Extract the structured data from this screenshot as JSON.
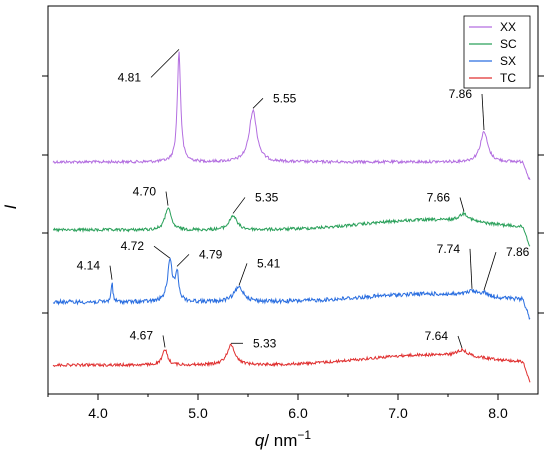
{
  "chart_data": {
    "type": "line",
    "title": "",
    "xlabel_var": "q",
    "xlabel_unit": "/ nm",
    "xlabel_exp": "−1",
    "ylabel": "I",
    "xlim": [
      3.5,
      8.4
    ],
    "x_ticks": [
      4.0,
      5.0,
      6.0,
      7.0,
      8.0
    ],
    "x_tick_labels": [
      "4.0",
      "5.0",
      "6.0",
      "7.0",
      "8.0"
    ],
    "y_ticks_labeled": false,
    "grid": false,
    "stacked_offset": true,
    "legend_position": "top-right",
    "series": [
      {
        "name": "XX",
        "color": "#b36ee0",
        "baseline": 0.0,
        "peaks": [
          {
            "x": 4.81,
            "height": 0.92,
            "width": 0.02
          },
          {
            "x": 5.55,
            "height": 0.43,
            "width": 0.045
          },
          {
            "x": 7.86,
            "height": 0.25,
            "width": 0.045
          }
        ],
        "labels": [
          "4.81",
          "5.55",
          "7.86"
        ]
      },
      {
        "name": "SC",
        "color": "#2aa05a",
        "baseline": 0.0,
        "peaks": [
          {
            "x": 4.7,
            "height": 0.28,
            "width": 0.035
          },
          {
            "x": 5.35,
            "height": 0.18,
            "width": 0.045
          },
          {
            "x": 7.66,
            "height": 0.1,
            "width": 0.06
          }
        ],
        "labels": [
          "4.70",
          "5.35",
          "7.66"
        ]
      },
      {
        "name": "SX",
        "color": "#2a6ee0",
        "baseline": 0.0,
        "peaks": [
          {
            "x": 4.14,
            "height": 0.28,
            "width": 0.01
          },
          {
            "x": 4.72,
            "height": 0.55,
            "width": 0.03
          },
          {
            "x": 4.79,
            "height": 0.38,
            "width": 0.02
          },
          {
            "x": 5.41,
            "height": 0.2,
            "width": 0.06
          },
          {
            "x": 7.74,
            "height": 0.06,
            "width": 0.06
          },
          {
            "x": 7.86,
            "height": 0.05,
            "width": 0.05
          }
        ],
        "labels": [
          "4.14",
          "4.72",
          "4.79",
          "5.41",
          "7.74",
          "7.86"
        ]
      },
      {
        "name": "TC",
        "color": "#e03030",
        "baseline": 0.0,
        "peaks": [
          {
            "x": 4.67,
            "height": 0.22,
            "width": 0.03
          },
          {
            "x": 5.33,
            "height": 0.28,
            "width": 0.05
          },
          {
            "x": 7.64,
            "height": 0.09,
            "width": 0.07
          }
        ],
        "labels": [
          "4.67",
          "5.33",
          "7.64"
        ]
      }
    ]
  }
}
